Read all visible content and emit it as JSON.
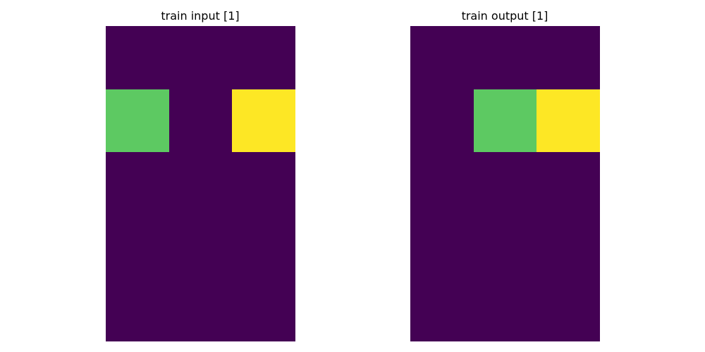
{
  "panels": [
    {
      "title": "train input [1]",
      "rows": 5,
      "cols": 3,
      "cells": [
        [
          0,
          0,
          0
        ],
        [
          3,
          0,
          4
        ],
        [
          0,
          0,
          0
        ],
        [
          0,
          0,
          0
        ],
        [
          0,
          0,
          0
        ]
      ]
    },
    {
      "title": "train output [1]",
      "rows": 5,
      "cols": 3,
      "cells": [
        [
          0,
          0,
          0
        ],
        [
          0,
          3,
          4
        ],
        [
          0,
          0,
          0
        ],
        [
          0,
          0,
          0
        ],
        [
          0,
          0,
          0
        ]
      ]
    }
  ],
  "palette": {
    "0": "#440154",
    "3": "#5dc962",
    "4": "#fde725"
  }
}
